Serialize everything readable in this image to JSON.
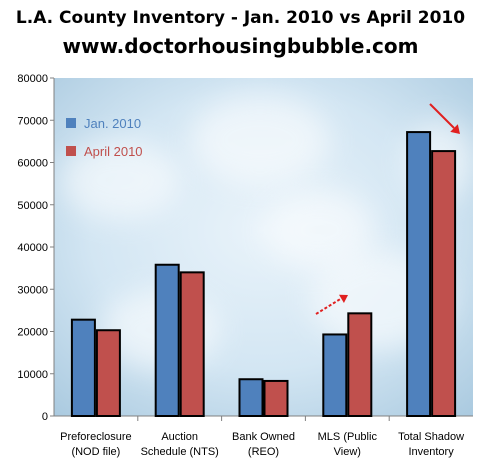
{
  "chart_data": {
    "type": "bar",
    "title": "L.A. County Inventory - Jan. 2010 vs April 2010",
    "subtitle": "www.doctorhousingbubble.com",
    "xlabel": "",
    "ylabel": "",
    "categories": [
      [
        "Preforeclosure",
        "(NOD file)"
      ],
      [
        "Auction",
        "Schedule (NTS)"
      ],
      [
        "Bank Owned",
        "(REO)"
      ],
      [
        "MLS (Public",
        "View)"
      ],
      [
        "Total Shadow",
        "Inventory"
      ]
    ],
    "series": [
      {
        "name": "Jan. 2010",
        "color": "#4f81bd",
        "values": [
          22800,
          35800,
          8700,
          19300,
          67200
        ]
      },
      {
        "name": "April 2010",
        "color": "#c0504d",
        "values": [
          20300,
          34000,
          8300,
          24300,
          62700
        ]
      }
    ],
    "ylim": [
      0,
      80000
    ],
    "yticks": [
      0,
      10000,
      20000,
      30000,
      40000,
      50000,
      60000,
      70000,
      80000
    ],
    "grid": false,
    "legend_position": "top-left"
  }
}
